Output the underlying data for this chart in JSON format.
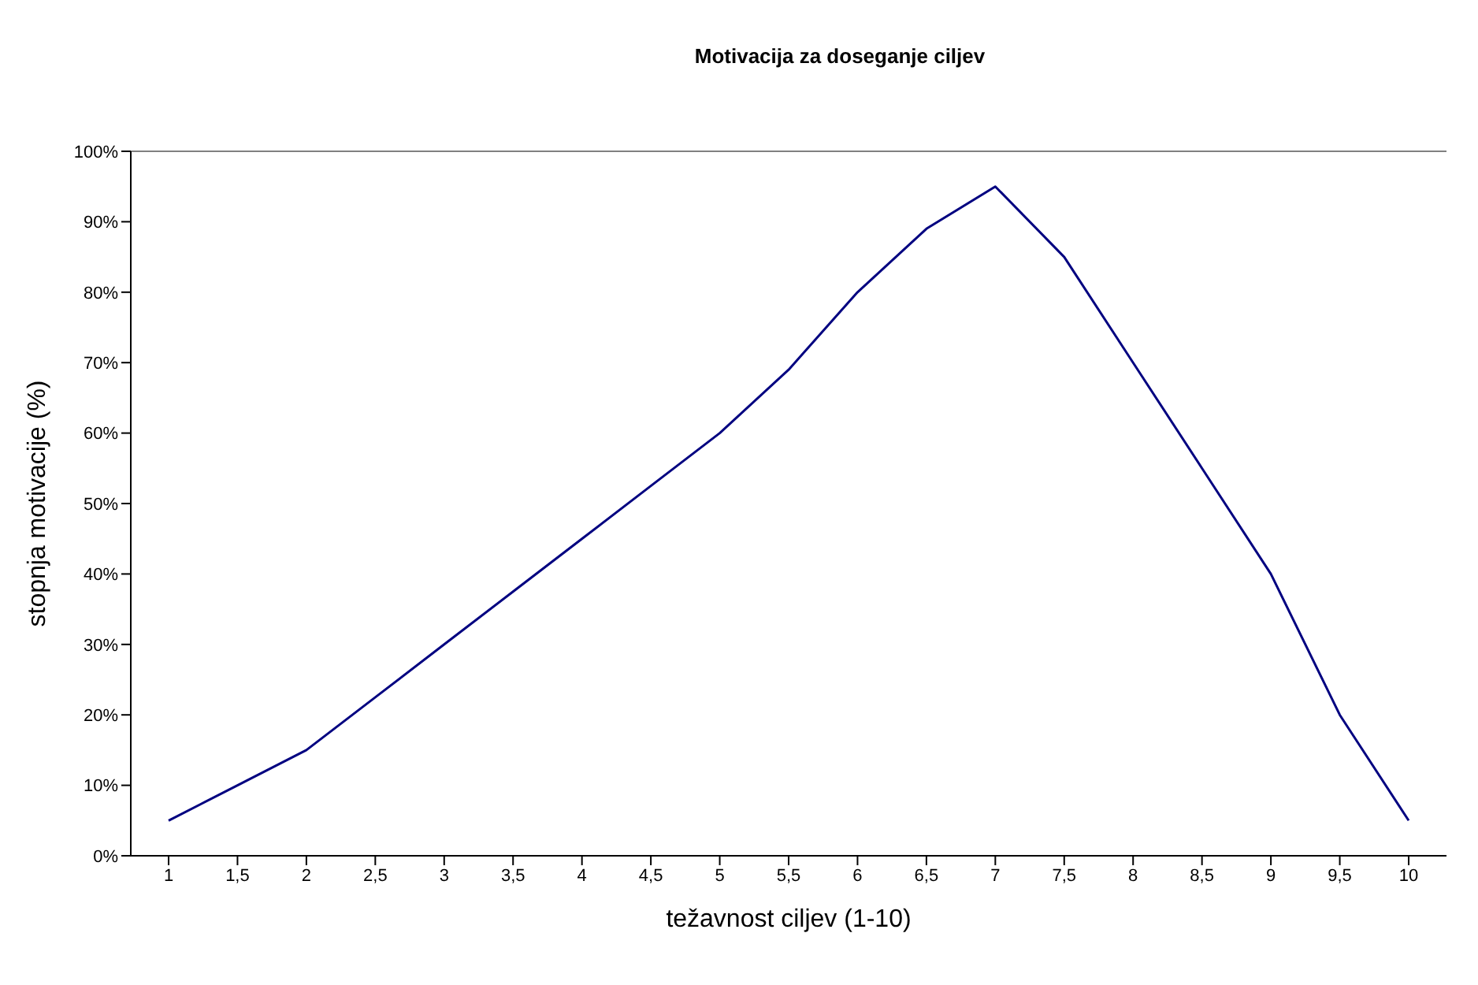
{
  "chart_data": {
    "type": "line",
    "title": "Motivacija za doseganje ciljev",
    "xlabel": "težavnost ciljev (1-10)",
    "ylabel": "stopnja motivacije (%)",
    "categories": [
      "1",
      "1,5",
      "2",
      "2,5",
      "3",
      "3,5",
      "4",
      "4,5",
      "5",
      "5,5",
      "6",
      "6,5",
      "7",
      "7,5",
      "8",
      "8,5",
      "9",
      "9,5",
      "10"
    ],
    "series": [
      {
        "color": "#000080",
        "values": [
          5,
          10,
          15,
          22.5,
          30,
          37.5,
          45,
          52.5,
          60,
          69,
          80,
          89,
          95,
          85,
          70,
          55,
          40,
          20,
          5
        ]
      }
    ],
    "ylim": [
      0,
      100
    ],
    "yticks": [
      {
        "value": 0,
        "label": "0%"
      },
      {
        "value": 10,
        "label": "10%"
      },
      {
        "value": 20,
        "label": "20%"
      },
      {
        "value": 30,
        "label": "30%"
      },
      {
        "value": 40,
        "label": "40%"
      },
      {
        "value": 50,
        "label": "50%"
      },
      {
        "value": 60,
        "label": "60%"
      },
      {
        "value": 70,
        "label": "70%"
      },
      {
        "value": 80,
        "label": "80%"
      },
      {
        "value": 90,
        "label": "90%"
      },
      {
        "value": 100,
        "label": "100%"
      }
    ],
    "ref_lines": [
      {
        "axis": "y",
        "value": 100,
        "color": "#808080"
      }
    ],
    "legend": false,
    "marker": "none",
    "line_style": "solid"
  }
}
